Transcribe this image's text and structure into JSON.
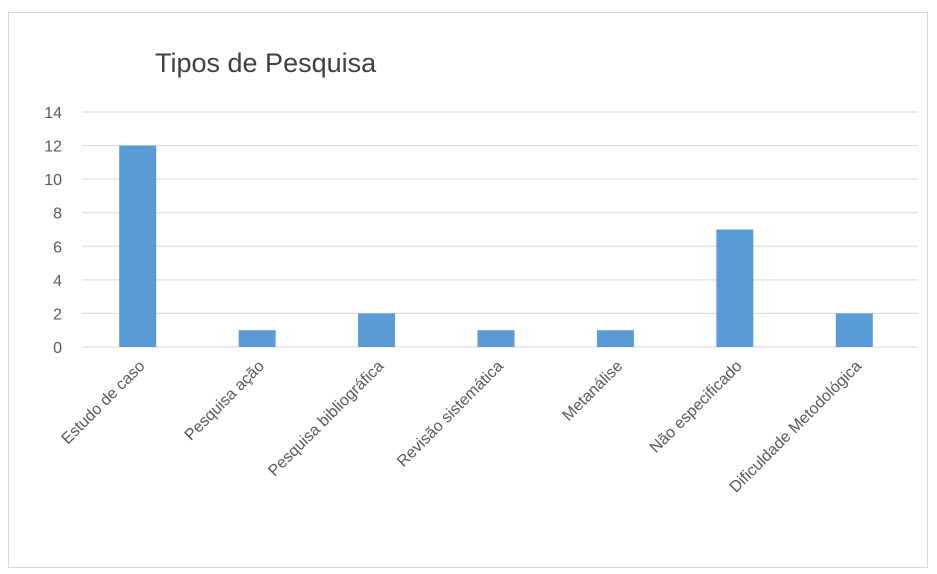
{
  "chart_data": {
    "type": "bar",
    "title": "Tipos de Pesquisa",
    "xlabel": "",
    "ylabel": "",
    "categories": [
      "Estudo de caso",
      "Pesquisa ação",
      "Pesquisa bibliográfica",
      "Revisão sistemática",
      "Metanálise",
      "Não especificado",
      "Dificuldade Metodológica"
    ],
    "values": [
      12,
      1,
      2,
      1,
      1,
      7,
      2
    ],
    "ylim": [
      0,
      14
    ],
    "yticks": [
      0,
      2,
      4,
      6,
      8,
      10,
      12,
      14
    ],
    "grid": true,
    "legend": "none",
    "bar_color": "#5b9bd5",
    "grid_color": "#d9d9d9"
  }
}
